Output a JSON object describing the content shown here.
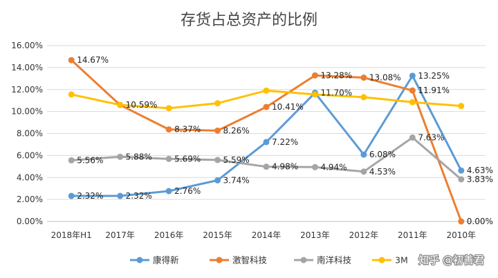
{
  "chart_data": {
    "type": "line",
    "title": "存货占总资产的比例",
    "categories": [
      "2018年H1",
      "2017年",
      "2016年",
      "2015年",
      "2014年",
      "2013年",
      "2012年",
      "2011年",
      "2010年"
    ],
    "ylim": [
      0,
      16
    ],
    "yticks": [
      "0.00%",
      "2.00%",
      "4.00%",
      "6.00%",
      "8.00%",
      "10.00%",
      "12.00%",
      "14.00%",
      "16.00%"
    ],
    "grid": true,
    "legend_position": "bottom",
    "series": [
      {
        "name": "康得新",
        "color": "#5b9bd5",
        "values": [
          2.32,
          2.32,
          2.76,
          3.74,
          7.22,
          11.7,
          6.08,
          13.25,
          4.63
        ],
        "labels": [
          "2.32%",
          "2.32%",
          "2.76%",
          "3.74%",
          "7.22%",
          "11.70%",
          "6.08%",
          "13.25%",
          "4.63%"
        ]
      },
      {
        "name": "激智科技",
        "color": "#ed7d31",
        "values": [
          14.67,
          10.59,
          8.37,
          8.26,
          10.41,
          13.28,
          13.08,
          11.91,
          0.0
        ],
        "labels": [
          "14.67%",
          "10.59%",
          "8.37%",
          "8.26%",
          "10.41%",
          "13.28%",
          "13.08%",
          "11.91%",
          "0.00%"
        ]
      },
      {
        "name": "南洋科技",
        "color": "#a5a5a5",
        "values": [
          5.56,
          5.88,
          5.69,
          5.59,
          4.98,
          4.94,
          4.53,
          7.63,
          3.83
        ],
        "labels": [
          "5.56%",
          "5.88%",
          "5.69%",
          "5.59%",
          "4.98%",
          "4.94%",
          "4.53%",
          "7.63%",
          "3.83%"
        ]
      },
      {
        "name": "3M",
        "color": "#ffc000",
        "values": [
          11.55,
          10.6,
          10.3,
          10.75,
          11.9,
          11.55,
          11.3,
          10.85,
          10.5
        ],
        "labels": []
      }
    ]
  },
  "watermark": "知乎 @初善君"
}
